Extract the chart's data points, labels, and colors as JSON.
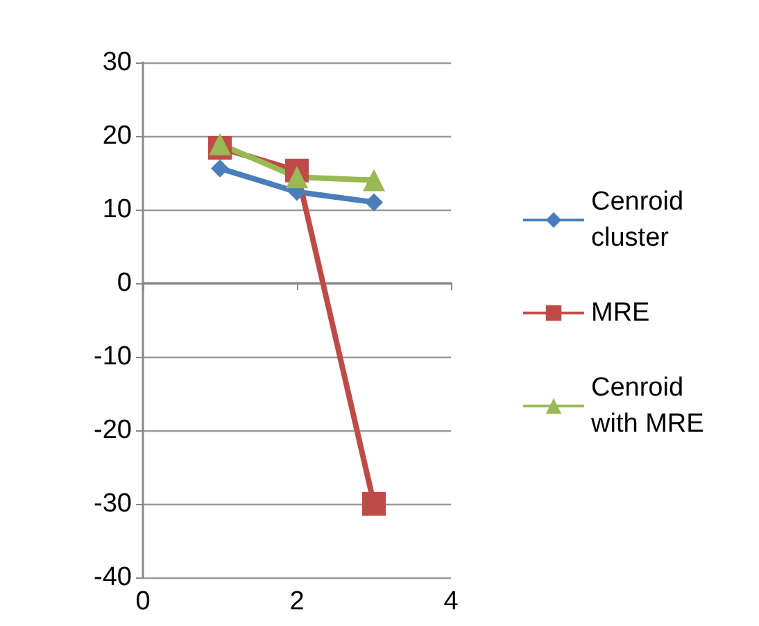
{
  "chart_data": {
    "type": "line",
    "x": [
      1,
      2,
      3
    ],
    "series": [
      {
        "name": "Cenroid cluster",
        "color": "#4a7ebb",
        "marker": "diamond",
        "values": [
          15.6,
          12.4,
          11
        ]
      },
      {
        "name": "MRE",
        "color": "#be4b48",
        "marker": "square",
        "values": [
          18.4,
          15.3,
          -30
        ]
      },
      {
        "name": "Cenroid with MRE",
        "color": "#98b954",
        "marker": "triangle",
        "values": [
          18.9,
          14.4,
          14
        ]
      }
    ],
    "xlim": [
      0,
      4
    ],
    "xticks": [
      0,
      2,
      4
    ],
    "ylim": [
      -40,
      30
    ],
    "yticks": [
      -40,
      -30,
      -20,
      -10,
      0,
      10,
      20,
      30
    ],
    "grid": "y",
    "legend": "right"
  }
}
